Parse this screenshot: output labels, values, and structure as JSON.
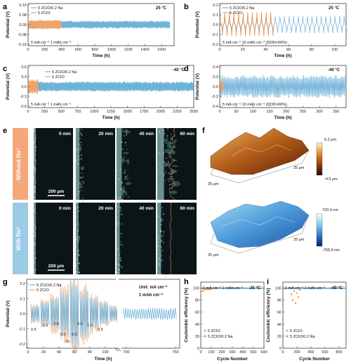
{
  "colors": {
    "blue": "#6fb2d8",
    "orange": "#f0a46a",
    "orange_dark": "#e8863a",
    "dashed": "#e8863a",
    "without_band": "#f4a87a",
    "with_band": "#9ccbe6"
  },
  "panel_letters": [
    "a",
    "b",
    "c",
    "d",
    "e",
    "f",
    "g",
    "h",
    "i"
  ],
  "panels": {
    "a": {
      "temp": "25 °C",
      "condition": "5 mA cm⁻²  1 mAh cm⁻²",
      "legend": [
        "5 ZCIO/0.2 Na",
        "5 ZCIO"
      ],
      "ylabel": "Potential (V)",
      "xlabel": "Time (h)",
      "yticks": [
        "0.16",
        "0.08",
        "0.00",
        "-0.08",
        "-0.16"
      ],
      "xticks": [
        "0",
        "200",
        "400",
        "600",
        "800",
        "1000",
        "1200",
        "1400",
        "1600"
      ]
    },
    "b": {
      "temp": "25 °C",
      "condition": "5 mA cm⁻²  10 mAh cm⁻² (DOD>60%)",
      "legend": [
        "5 ZCIO/0.2 Na",
        "5 ZCIO"
      ],
      "ylabel": "Potential (V)",
      "xlabel": "Time (h)",
      "yticks": [
        "0.2",
        "0.1",
        "0.0",
        "-0.1",
        "-0.2"
      ],
      "xticks": [
        "0",
        "20",
        "40",
        "60",
        "80",
        "100"
      ]
    },
    "c": {
      "temp": "-40 °C",
      "condition": "5 mA cm⁻²  1 mAh cm⁻²",
      "legend": [
        "5 ZCIO/0.2 Na",
        "5 ZCIO"
      ],
      "ylabel": "Potential (V)",
      "xlabel": "Time (h)",
      "yticks": [
        "0.6",
        "0.3",
        "0.0",
        "-0.3",
        "-0.6"
      ],
      "xticks": [
        "0",
        "250",
        "500",
        "750",
        "1000",
        "1250",
        "1500",
        "1750",
        "2000",
        "2250",
        "2500"
      ]
    },
    "d": {
      "temp": "-40 °C",
      "condition": "5 mA cm⁻²  10 mAh cm⁻² (DOD>60%)",
      "ylabel": "Potential (V)",
      "xlabel": "Time (h)",
      "yticks": [
        "0.4",
        "0.2",
        "0.0",
        "-0.2",
        "-0.4"
      ],
      "xticks": [
        "0",
        "50",
        "100",
        "150",
        "200",
        "250",
        "300",
        "350"
      ]
    },
    "e": {
      "rows": [
        "Without Na⁺",
        "With Na⁺"
      ],
      "times": [
        "0 min",
        "20 min",
        "40 min",
        "60 min"
      ],
      "scalebar": "200 μm"
    },
    "f": {
      "top": {
        "max": "5.2 μm",
        "min": "-4.5 μm",
        "axis1": "25 μm",
        "axis2": "25 μm"
      },
      "bottom": {
        "max": "720.0 nm",
        "min": "-755.0 nm",
        "axis1": "25 μm",
        "axis2": "25 μm"
      }
    },
    "g": {
      "legend": [
        "5 ZCIO/0.2 Na",
        "5 ZCIO"
      ],
      "unit": "Unit: mA cm⁻²",
      "capacity": "1 mAh cm⁻²",
      "ylabel": "Potential (V)",
      "xlabel": "Time (h)",
      "yticks": [
        "0.2",
        "0.1",
        "0.0",
        "-0.1",
        "-0.2"
      ],
      "xticks": [
        "0",
        "20",
        "40",
        "60",
        "80",
        "100",
        "700",
        "750"
      ],
      "rate_labels": [
        "0.5",
        "1.0",
        "2.0",
        "5.0",
        "10",
        "5.0",
        "2.0",
        "1.0",
        "0.5"
      ]
    },
    "h": {
      "condition": "1 mA cm⁻²  1 mAh cm⁻²",
      "temp": "25 °C",
      "legend": [
        "5 ZCIO",
        "5 ZCIO/0.2 Na"
      ],
      "ylabel": "Coulombic efficiency (%)",
      "xlabel": "Cycle Number",
      "yticks": [
        "100",
        "80",
        "60",
        "40",
        "20",
        "0"
      ],
      "xticks": [
        "0",
        "100",
        "200",
        "300",
        "400",
        "500",
        "600"
      ]
    },
    "i": {
      "condition": "1 mA cm⁻²  1 mAh cm⁻²",
      "temp": "-40 °C",
      "legend": [
        "5 ZCIO",
        "5 ZCIO/0.2 Na"
      ],
      "ylabel": "Coulombic efficiency (%)",
      "xlabel": "Cycle Number",
      "yticks": [
        "100",
        "80",
        "60",
        "40",
        "20",
        "0"
      ],
      "xticks": [
        "0",
        "200",
        "400",
        "600",
        "800"
      ]
    }
  },
  "chart_data": [
    {
      "type": "line",
      "panel": "a",
      "xlim": [
        0,
        1750
      ],
      "ylim": [
        -0.16,
        0.16
      ],
      "series": [
        {
          "name": "5 ZCIO/0.2 Na",
          "x_range": [
            0,
            1700
          ],
          "amplitude": 0.025
        },
        {
          "name": "5 ZCIO",
          "x_range": [
            0,
            400
          ],
          "amplitude": 0.03
        }
      ]
    },
    {
      "type": "line",
      "panel": "b",
      "xlim": [
        0,
        110
      ],
      "ylim": [
        -0.2,
        0.2
      ],
      "series": [
        {
          "name": "5 ZCIO/0.2 Na",
          "x_range": [
            0,
            108
          ],
          "amplitude": 0.08
        },
        {
          "name": "5 ZCIO",
          "x_range": [
            0,
            45
          ],
          "amplitude": 0.12
        }
      ]
    },
    {
      "type": "line",
      "panel": "c",
      "xlim": [
        0,
        2500
      ],
      "ylim": [
        -0.6,
        0.6
      ],
      "series": [
        {
          "name": "5 ZCIO/0.2 Na",
          "x_range": [
            0,
            2500
          ],
          "amplitude": 0.12
        },
        {
          "name": "5 ZCIO",
          "x_range": [
            0,
            150
          ],
          "amplitude": 0.18
        }
      ]
    },
    {
      "type": "line",
      "panel": "d",
      "xlim": [
        0,
        380
      ],
      "ylim": [
        -0.4,
        0.4
      ],
      "series": [
        {
          "name": "5 ZCIO/0.2 Na",
          "x_range": [
            0,
            380
          ],
          "amplitude": 0.18
        },
        {
          "name": "5 ZCIO",
          "x_range": [
            0,
            10
          ],
          "amplitude": 0.1
        }
      ]
    },
    {
      "type": "line",
      "panel": "g",
      "ylim": [
        -0.2,
        0.2
      ],
      "series": [
        {
          "name": "5 ZCIO/0.2 Na",
          "rates": [
            0.5,
            1.0,
            2.0,
            5.0,
            10,
            5.0,
            2.0,
            1.0,
            0.5
          ]
        },
        {
          "name": "5 ZCIO",
          "rates": [
            0.5,
            1.0,
            2.0,
            5.0,
            10,
            5.0,
            2.0,
            1.0,
            0.5
          ]
        }
      ]
    },
    {
      "type": "scatter",
      "panel": "h",
      "xlim": [
        0,
        600
      ],
      "ylim": [
        0,
        110
      ],
      "series": [
        {
          "name": "5 ZCIO",
          "x_range": [
            0,
            100
          ],
          "value": 98
        },
        {
          "name": "5 ZCIO/0.2 Na",
          "x_range": [
            0,
            600
          ],
          "value": 99.8
        }
      ]
    },
    {
      "type": "scatter",
      "panel": "i",
      "xlim": [
        0,
        900
      ],
      "ylim": [
        0,
        110
      ],
      "series": [
        {
          "name": "5 ZCIO",
          "points": [
            [
              120,
              90
            ],
            [
              140,
              80
            ],
            [
              160,
              95
            ],
            [
              180,
              75
            ],
            [
              200,
              92
            ],
            [
              220,
              85
            ],
            [
              240,
              97
            ]
          ]
        },
        {
          "name": "5 ZCIO/0.2 Na",
          "x_range": [
            0,
            900
          ],
          "value": 99.8
        }
      ]
    }
  ]
}
